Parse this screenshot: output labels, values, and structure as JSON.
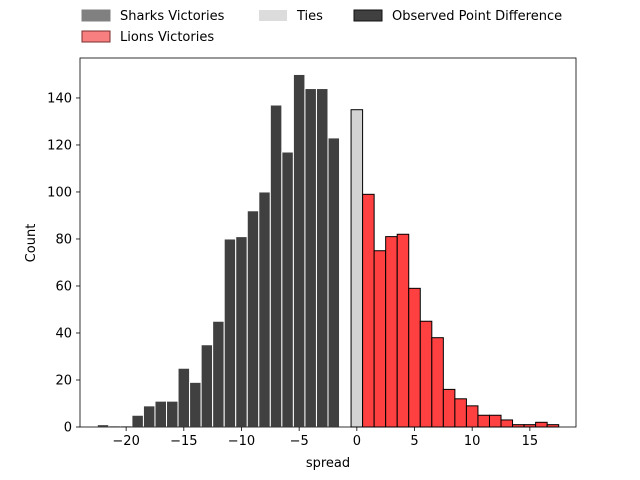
{
  "chart_data": {
    "type": "bar",
    "xlabel": "spread",
    "ylabel": "Count",
    "xlim": [
      -24,
      19
    ],
    "ylim": [
      0,
      157
    ],
    "xticks": [
      -20,
      -15,
      -10,
      -5,
      0,
      5,
      10,
      15
    ],
    "yticks": [
      0,
      20,
      40,
      60,
      80,
      100,
      120,
      140
    ],
    "tick_labels_x": [
      "−20",
      "−15",
      "−10",
      "−5",
      "0",
      "5",
      "10",
      "15"
    ],
    "tick_labels_y": [
      "0",
      "20",
      "40",
      "60",
      "80",
      "100",
      "120",
      "140"
    ],
    "legend_placement": "top, above plot, 3 columns",
    "legend": [
      {
        "label": "Sharks Victories",
        "color": "#808080"
      },
      {
        "label": "Lions Victories",
        "color": "#f87f7f"
      },
      {
        "label": "Ties",
        "color": "#dcdcdc"
      },
      {
        "label": "Observed Point Difference",
        "color": "#404040"
      }
    ],
    "bin_width": 1,
    "bar_colors": {
      "negative": "#404040",
      "tie": "#d3d3d3",
      "positive": "#ff4040"
    },
    "bins": [
      {
        "x": -23,
        "count": 0.3
      },
      {
        "x": -22,
        "count": 1
      },
      {
        "x": -21,
        "count": 0.5
      },
      {
        "x": -20,
        "count": 0.5
      },
      {
        "x": -19,
        "count": 5
      },
      {
        "x": -18,
        "count": 9
      },
      {
        "x": -17,
        "count": 11
      },
      {
        "x": -16,
        "count": 11
      },
      {
        "x": -15,
        "count": 25
      },
      {
        "x": -14,
        "count": 19
      },
      {
        "x": -13,
        "count": 35
      },
      {
        "x": -12,
        "count": 45
      },
      {
        "x": -11,
        "count": 80
      },
      {
        "x": -10,
        "count": 81
      },
      {
        "x": -9,
        "count": 92
      },
      {
        "x": -8,
        "count": 100
      },
      {
        "x": -7,
        "count": 137
      },
      {
        "x": -6,
        "count": 117
      },
      {
        "x": -5,
        "count": 150
      },
      {
        "x": -4,
        "count": 144
      },
      {
        "x": -3,
        "count": 144
      },
      {
        "x": -2,
        "count": 123
      },
      {
        "x": 0,
        "count": 135
      },
      {
        "x": 1,
        "count": 99
      },
      {
        "x": 2,
        "count": 75
      },
      {
        "x": 3,
        "count": 81
      },
      {
        "x": 4,
        "count": 82
      },
      {
        "x": 5,
        "count": 59
      },
      {
        "x": 6,
        "count": 45
      },
      {
        "x": 7,
        "count": 38
      },
      {
        "x": 8,
        "count": 16
      },
      {
        "x": 9,
        "count": 12
      },
      {
        "x": 10,
        "count": 9
      },
      {
        "x": 11,
        "count": 5
      },
      {
        "x": 12,
        "count": 5
      },
      {
        "x": 13,
        "count": 3
      },
      {
        "x": 14,
        "count": 1
      },
      {
        "x": 15,
        "count": 1
      },
      {
        "x": 16,
        "count": 2
      },
      {
        "x": 17,
        "count": 1
      }
    ]
  }
}
